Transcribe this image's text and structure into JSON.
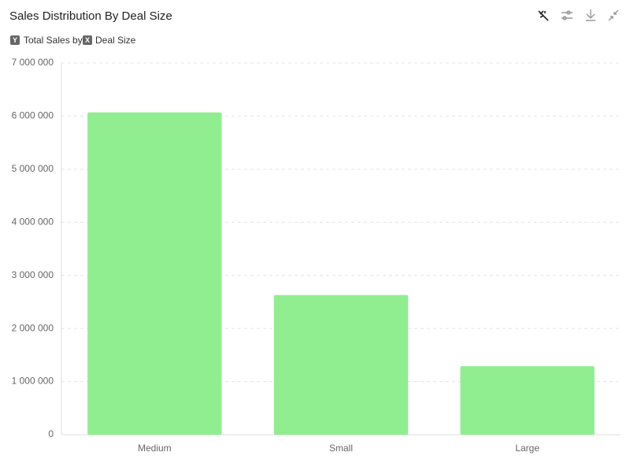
{
  "chart_data": {
    "type": "bar",
    "title": "Sales Distribution By Deal Size",
    "axis_summary": {
      "y_badge": "Y",
      "y_text": "Total Sales by",
      "x_badge": "X",
      "x_text": "Deal Size"
    },
    "categories": [
      "Medium",
      "Small",
      "Large"
    ],
    "values": [
      6070000,
      2630000,
      1290000
    ],
    "color": "#90ee90",
    "ylim": [
      0,
      7000000
    ],
    "yticks": [
      0,
      {
        "value": 1000000,
        "label": "1 000 000"
      },
      {
        "value": 2000000,
        "label": "2 000 000"
      },
      {
        "value": 3000000,
        "label": "3 000 000"
      },
      {
        "value": 4000000,
        "label": "4 000 000"
      },
      {
        "value": 5000000,
        "label": "5 000 000"
      },
      {
        "value": 6000000,
        "label": "6 000 000"
      },
      {
        "value": 7000000,
        "label": "7 000 000"
      }
    ],
    "grid": true
  }
}
